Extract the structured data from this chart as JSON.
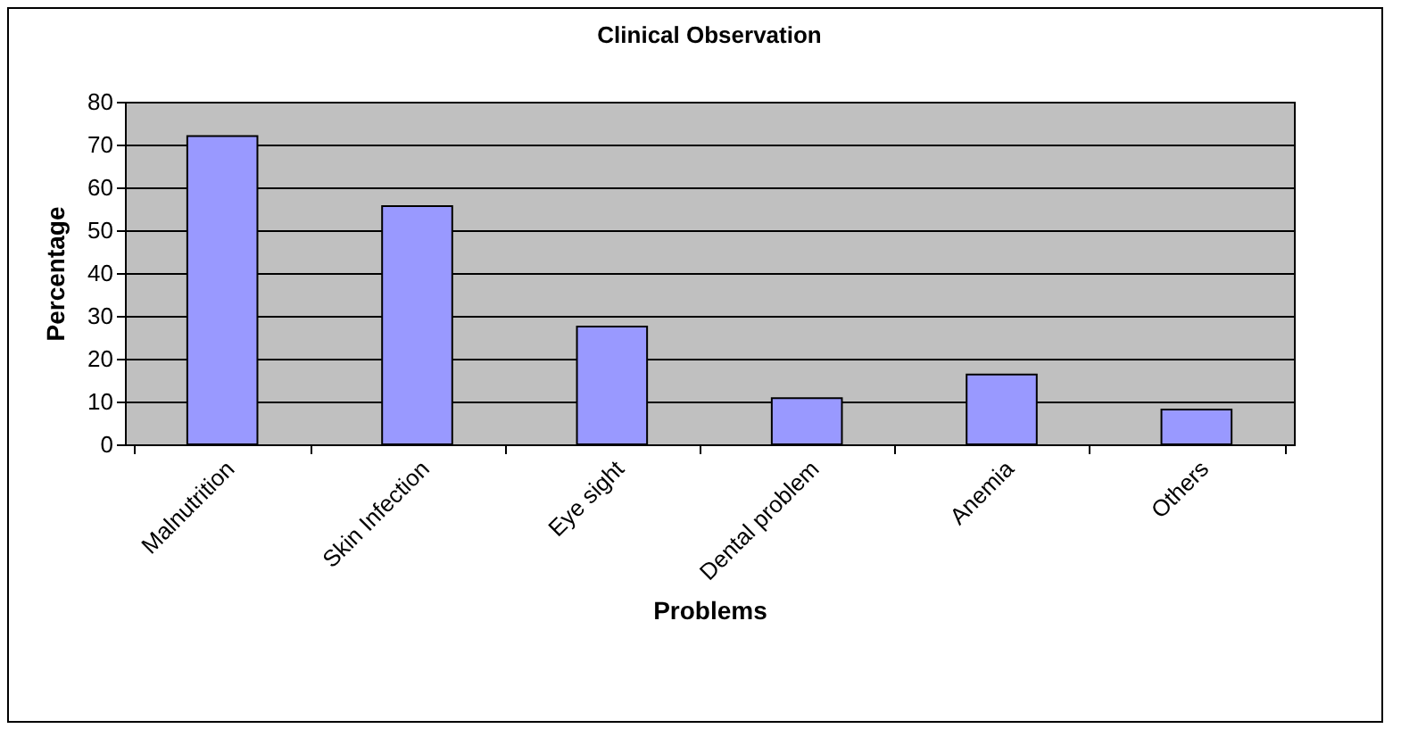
{
  "chart_data": {
    "type": "bar",
    "title": "Clinical Observation",
    "xlabel": "Problems",
    "ylabel": "Percentage",
    "categories": [
      "Malnutrition",
      "Skin Infection",
      "Eye sight",
      "Dental problem",
      "Anemia",
      "Others"
    ],
    "values": [
      72,
      55.6,
      27.5,
      10.8,
      16.3,
      8.1
    ],
    "color": "#9999ff",
    "ylim": [
      0,
      80
    ],
    "yticks": [
      0,
      10,
      20,
      30,
      40,
      50,
      60,
      70,
      80
    ],
    "grid": "y"
  }
}
